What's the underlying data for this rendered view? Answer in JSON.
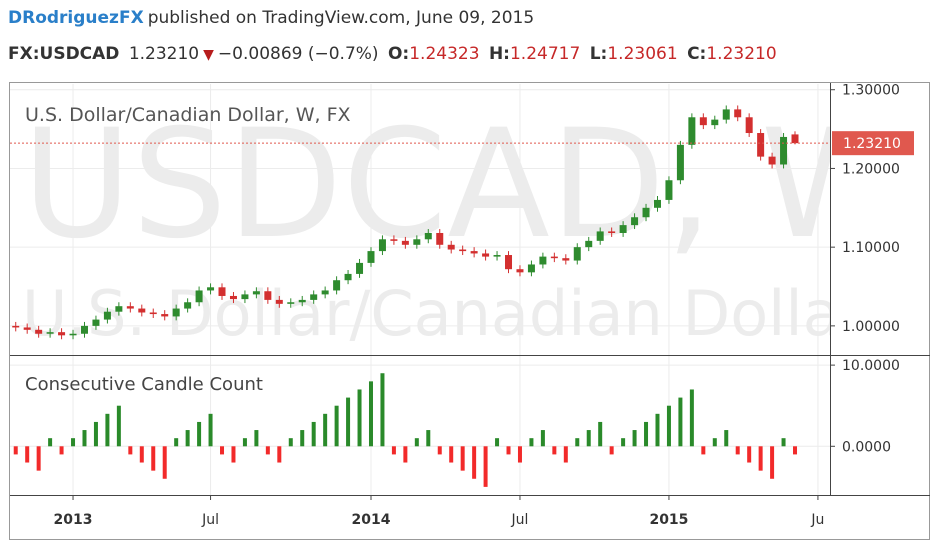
{
  "header": {
    "author": "DRodriguezFX",
    "published": "published on TradingView.com, June 09, 2015",
    "symbol": "FX:USDCAD",
    "last": "1.23210",
    "change": "−0.00869 (−0.7%)",
    "ohlc": [
      {
        "key": "O:",
        "value": "1.24323"
      },
      {
        "key": "H:",
        "value": "1.24717"
      },
      {
        "key": "L:",
        "value": "1.23061"
      },
      {
        "key": "C:",
        "value": "1.23210"
      }
    ]
  },
  "chart_data": [
    {
      "type": "candlestick",
      "title": "U.S. Dollar/Canadian Dollar, W, FX",
      "watermark": "USDCAD, W",
      "watermark_subtitle": "U.S. Dollar/Canadian Dollar",
      "up_color": "#2e8b2e",
      "down_color": "#d32f2f",
      "grid": true,
      "open": [
        1.0,
        0.998,
        0.995,
        0.99,
        0.992,
        0.988,
        0.99,
        1.0,
        1.008,
        1.018,
        1.025,
        1.022,
        1.017,
        1.015,
        1.012,
        1.022,
        1.03,
        1.045,
        1.049,
        1.038,
        1.034,
        1.04,
        1.044,
        1.033,
        1.028,
        1.03,
        1.033,
        1.04,
        1.045,
        1.058,
        1.066,
        1.08,
        1.095,
        1.11,
        1.108,
        1.103,
        1.11,
        1.118,
        1.103,
        1.097,
        1.095,
        1.092,
        1.088,
        1.09,
        1.072,
        1.068,
        1.078,
        1.088,
        1.086,
        1.083,
        1.1,
        1.108,
        1.12,
        1.118,
        1.128,
        1.138,
        1.15,
        1.16,
        1.185,
        1.23,
        1.265,
        1.255,
        1.262,
        1.275,
        1.265,
        1.245,
        1.215,
        1.205,
        1.24323,
        null,
        null
      ],
      "high": [
        1.005,
        1.003,
        1.0,
        0.997,
        0.997,
        0.995,
        1.005,
        1.013,
        1.023,
        1.03,
        1.03,
        1.027,
        1.022,
        1.02,
        1.027,
        1.035,
        1.05,
        1.054,
        1.054,
        1.043,
        1.045,
        1.049,
        1.049,
        1.038,
        1.035,
        1.038,
        1.045,
        1.05,
        1.063,
        1.071,
        1.085,
        1.1,
        1.115,
        1.115,
        1.113,
        1.115,
        1.123,
        1.123,
        1.108,
        1.102,
        1.1,
        1.097,
        1.095,
        1.095,
        1.077,
        1.083,
        1.093,
        1.093,
        1.091,
        1.105,
        1.113,
        1.125,
        1.125,
        1.133,
        1.143,
        1.155,
        1.165,
        1.19,
        1.235,
        1.27,
        1.27,
        1.267,
        1.28,
        1.28,
        1.27,
        1.25,
        1.22,
        1.245,
        1.24717,
        null,
        null
      ],
      "low": [
        0.993,
        0.99,
        0.985,
        0.985,
        0.983,
        0.983,
        0.985,
        0.995,
        1.003,
        1.013,
        1.017,
        1.012,
        1.01,
        1.007,
        1.007,
        1.017,
        1.025,
        1.04,
        1.033,
        1.029,
        1.029,
        1.035,
        1.028,
        1.023,
        1.023,
        1.025,
        1.028,
        1.035,
        1.04,
        1.053,
        1.061,
        1.075,
        1.09,
        1.103,
        1.098,
        1.098,
        1.105,
        1.098,
        1.092,
        1.09,
        1.087,
        1.083,
        1.083,
        1.067,
        1.063,
        1.063,
        1.073,
        1.081,
        1.078,
        1.078,
        1.095,
        1.103,
        1.113,
        1.113,
        1.123,
        1.133,
        1.145,
        1.155,
        1.18,
        1.225,
        1.25,
        1.25,
        1.257,
        1.26,
        1.24,
        1.21,
        1.2,
        1.2,
        1.23061,
        null,
        null
      ],
      "close": [
        0.998,
        0.995,
        0.99,
        0.992,
        0.988,
        0.99,
        1.0,
        1.008,
        1.018,
        1.025,
        1.022,
        1.017,
        1.015,
        1.012,
        1.022,
        1.03,
        1.045,
        1.049,
        1.038,
        1.034,
        1.04,
        1.044,
        1.033,
        1.028,
        1.03,
        1.033,
        1.04,
        1.045,
        1.058,
        1.066,
        1.08,
        1.095,
        1.11,
        1.108,
        1.103,
        1.11,
        1.118,
        1.103,
        1.097,
        1.095,
        1.092,
        1.088,
        1.09,
        1.072,
        1.068,
        1.078,
        1.088,
        1.086,
        1.083,
        1.1,
        1.108,
        1.12,
        1.118,
        1.128,
        1.138,
        1.15,
        1.16,
        1.185,
        1.23,
        1.265,
        1.255,
        1.262,
        1.275,
        1.265,
        1.245,
        1.215,
        1.205,
        1.24,
        1.2321,
        null,
        null
      ],
      "last_price": {
        "value": 1.2321,
        "label": "1.23210"
      },
      "last_price_color": "#e0584e",
      "ylim": [
        0.963,
        1.306
      ],
      "yticks": [
        {
          "value": 1.0,
          "label": "1.00000"
        },
        {
          "value": 1.1,
          "label": "1.10000"
        },
        {
          "value": 1.2,
          "label": "1.20000"
        },
        {
          "value": 1.3,
          "label": "1.30000"
        }
      ]
    },
    {
      "type": "bar",
      "title": "Consecutive Candle Count",
      "positive_color": "#2a8a2a",
      "negative_color": "#f22a2a",
      "grid": true,
      "categories": [
        null,
        null,
        null,
        null,
        null,
        "2013",
        null,
        null,
        null,
        null,
        null,
        null,
        null,
        null,
        null,
        null,
        null,
        "Jul",
        null,
        null,
        null,
        null,
        null,
        null,
        null,
        null,
        null,
        null,
        null,
        null,
        null,
        "2014",
        null,
        null,
        null,
        null,
        null,
        null,
        null,
        null,
        null,
        null,
        null,
        null,
        "Jul",
        null,
        null,
        null,
        null,
        null,
        null,
        null,
        null,
        null,
        null,
        null,
        null,
        "2015",
        null,
        null,
        null,
        null,
        null,
        null,
        null,
        null,
        null,
        null,
        null,
        null,
        "Ju"
      ],
      "values": [
        -1,
        -2,
        -3,
        1,
        -1,
        1,
        2,
        3,
        4,
        5,
        -1,
        -2,
        -3,
        -4,
        1,
        2,
        3,
        4,
        -1,
        -2,
        1,
        2,
        -1,
        -2,
        1,
        2,
        3,
        4,
        5,
        6,
        7,
        8,
        9,
        -1,
        -2,
        1,
        2,
        -1,
        -2,
        -3,
        -4,
        -5,
        1,
        -1,
        -2,
        1,
        2,
        -1,
        -2,
        1,
        2,
        3,
        -1,
        1,
        2,
        3,
        4,
        5,
        6,
        7,
        -1,
        1,
        2,
        -1,
        -2,
        -3,
        -4,
        1,
        -1,
        null,
        null
      ],
      "ylim": [
        -6,
        11
      ],
      "yticks": [
        {
          "value": 0,
          "label": "0.0000"
        },
        {
          "value": 10,
          "label": "10.0000"
        }
      ]
    }
  ]
}
